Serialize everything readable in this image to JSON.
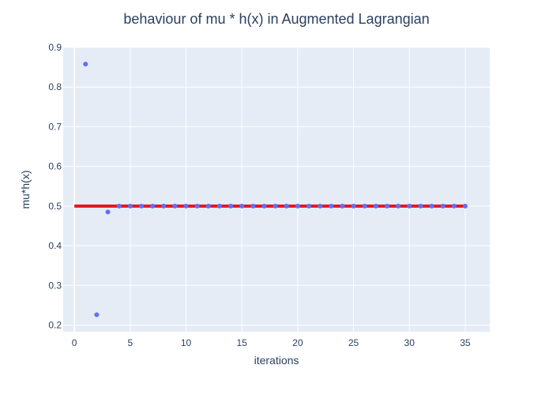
{
  "chart_data": {
    "type": "scatter",
    "title": "behaviour of mu * h(x) in Augmented Lagrangian",
    "xlabel": "iterations",
    "ylabel": "mu*h(x)",
    "xlim": [
      -1,
      37.2
    ],
    "ylim": [
      0.183,
      0.9
    ],
    "x_ticks": [
      0,
      5,
      10,
      15,
      20,
      25,
      30,
      35
    ],
    "y_ticks": [
      0.2,
      0.3,
      0.4,
      0.5,
      0.6,
      0.7,
      0.8,
      0.9
    ],
    "y_tick_labels": [
      "0.2",
      "0.3",
      "0.4",
      "0.5",
      "0.6",
      "0.7",
      "0.8",
      "0.9"
    ],
    "grid": true,
    "background": "#e5ecf6",
    "series": [
      {
        "mode": "markers",
        "color": "#636efa",
        "x": [
          1,
          2,
          3,
          4,
          5,
          6,
          7,
          8,
          9,
          10,
          11,
          12,
          13,
          14,
          15,
          16,
          17,
          18,
          19,
          20,
          21,
          22,
          23,
          24,
          25,
          26,
          27,
          28,
          29,
          30,
          31,
          32,
          33,
          34,
          35
        ],
        "y": [
          0.858,
          0.226,
          0.485,
          0.5,
          0.5,
          0.5,
          0.5,
          0.5,
          0.5,
          0.5,
          0.5,
          0.5,
          0.5,
          0.5,
          0.5,
          0.5,
          0.5,
          0.5,
          0.5,
          0.5,
          0.5,
          0.5,
          0.5,
          0.5,
          0.5,
          0.5,
          0.5,
          0.5,
          0.5,
          0.5,
          0.5,
          0.5,
          0.5,
          0.5,
          0.5
        ]
      },
      {
        "mode": "lines",
        "color": "#e8141c",
        "x": [
          0,
          35
        ],
        "y": [
          0.5,
          0.5
        ]
      }
    ]
  }
}
